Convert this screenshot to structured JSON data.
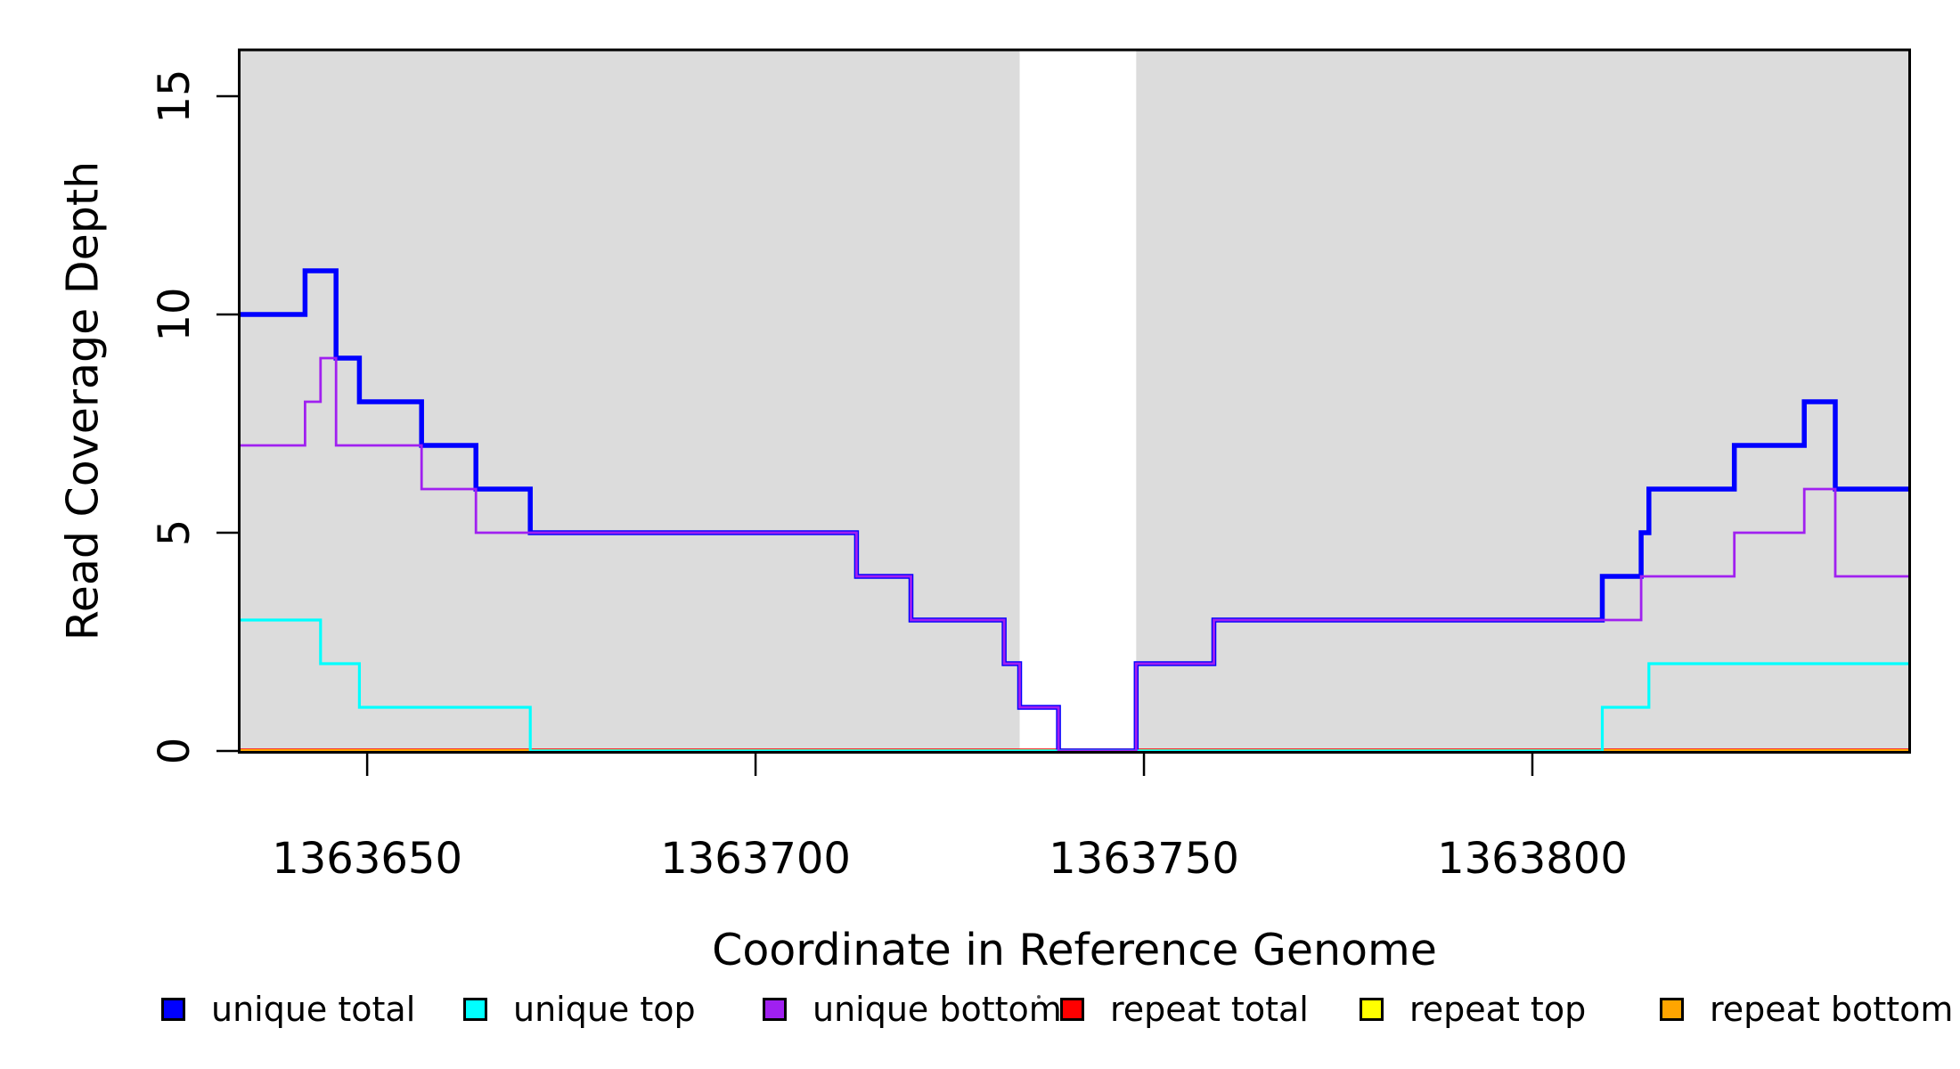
{
  "figure": {
    "background": "#ffffff",
    "panel_shade_color": "#dcdcdc",
    "axis_color": "#000000"
  },
  "chart_data": {
    "type": "line",
    "subtype": "step",
    "title": "",
    "xlabel": "Coordinate in Reference Genome",
    "ylabel": "Read Coverage Depth",
    "xlim": [
      1363633.7,
      1363848.4
    ],
    "ylim": [
      0,
      16.06
    ],
    "x_ticks": [
      1363650,
      1363700,
      1363750,
      1363800
    ],
    "x_tick_labels": [
      "1363650",
      "1363700",
      "1363750",
      "1363800"
    ],
    "y_ticks": [
      0,
      5,
      10,
      15
    ],
    "y_tick_labels": [
      "0",
      "5",
      "10",
      "15"
    ],
    "grid": false,
    "shaded_regions": [
      {
        "name": "left-unique-region",
        "from": 1363633.7,
        "to": 1363734
      },
      {
        "name": "right-unique-region",
        "from": 1363749,
        "to": 1363848.4
      }
    ],
    "draw_order": [
      "repeat total",
      "repeat top",
      "repeat bottom",
      "unique total",
      "unique top",
      "unique bottom"
    ],
    "series": [
      {
        "name": "unique total",
        "color": "#0000ff",
        "width": 5.5,
        "steps": [
          [
            1363633.7,
            10
          ],
          [
            1363642,
            11
          ],
          [
            1363646,
            9
          ],
          [
            1363649,
            8
          ],
          [
            1363657,
            7
          ],
          [
            1363664,
            6
          ],
          [
            1363671,
            5
          ],
          [
            1363713,
            4
          ],
          [
            1363720,
            3
          ],
          [
            1363732,
            2
          ],
          [
            1363734,
            1
          ],
          [
            1363739,
            0
          ],
          [
            1363749,
            2
          ],
          [
            1363759,
            3
          ],
          [
            1363809,
            4
          ],
          [
            1363814,
            5
          ],
          [
            1363815,
            6
          ],
          [
            1363826,
            7
          ],
          [
            1363835,
            8
          ],
          [
            1363839,
            6
          ]
        ]
      },
      {
        "name": "unique top",
        "color": "#00ffff",
        "width": 3.2,
        "steps": [
          [
            1363633.7,
            3
          ],
          [
            1363644,
            2
          ],
          [
            1363649,
            1
          ],
          [
            1363671,
            0
          ],
          [
            1363809,
            1
          ],
          [
            1363815,
            2
          ]
        ]
      },
      {
        "name": "unique bottom",
        "color": "#a020f0",
        "width": 2.8,
        "steps": [
          [
            1363633.7,
            7
          ],
          [
            1363642,
            8
          ],
          [
            1363644,
            9
          ],
          [
            1363646,
            7
          ],
          [
            1363657,
            6
          ],
          [
            1363664,
            5
          ],
          [
            1363713,
            4
          ],
          [
            1363720,
            3
          ],
          [
            1363732,
            2
          ],
          [
            1363734,
            1
          ],
          [
            1363739,
            0
          ],
          [
            1363749,
            2
          ],
          [
            1363759,
            3
          ],
          [
            1363814,
            4
          ],
          [
            1363826,
            5
          ],
          [
            1363835,
            6
          ],
          [
            1363839,
            4
          ]
        ]
      },
      {
        "name": "repeat total",
        "color": "#ff0000",
        "width": 5.5,
        "steps": [
          [
            1363633.7,
            0
          ]
        ]
      },
      {
        "name": "repeat top",
        "color": "#ffff00",
        "width": 4,
        "steps": [
          [
            1363633.7,
            0
          ]
        ]
      },
      {
        "name": "repeat bottom",
        "color": "#ffa500",
        "width": 4,
        "steps": [
          [
            1363633.7,
            0
          ]
        ]
      }
    ]
  },
  "legend": {
    "items": [
      {
        "label": "unique total",
        "color": "#0000ff"
      },
      {
        "label": "unique top",
        "color": "#00ffff"
      },
      {
        "label": "unique bottom",
        "color": "#a020f0"
      },
      {
        "label": "repeat total",
        "color": "#ff0000"
      },
      {
        "label": "repeat top",
        "color": "#ffff00"
      },
      {
        "label": "repeat bottom",
        "color": "#ffa500"
      }
    ]
  }
}
